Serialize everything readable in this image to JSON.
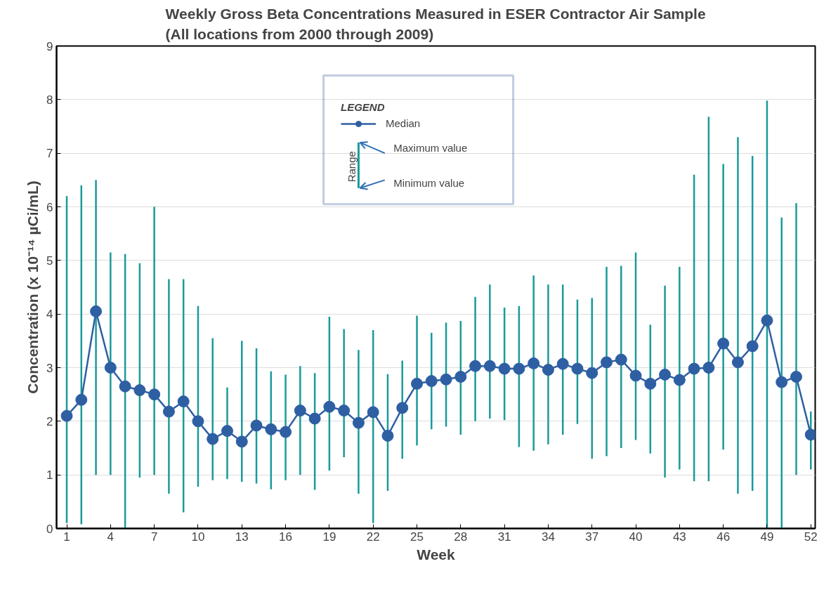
{
  "chart_data": {
    "type": "line",
    "title": "Weekly Gross Beta Concentrations Measured in ESER Contractor Air Sample\n(All locations from 2000 through 2009)",
    "xlabel": "Week",
    "ylabel": "Concentration (x 10⁻¹⁴ µCi/mL)",
    "legend_title": "LEGEND",
    "x": [
      1,
      2,
      3,
      4,
      5,
      6,
      7,
      8,
      9,
      10,
      11,
      12,
      13,
      14,
      15,
      16,
      17,
      18,
      19,
      20,
      21,
      22,
      23,
      24,
      25,
      26,
      27,
      28,
      29,
      30,
      31,
      32,
      33,
      34,
      35,
      36,
      37,
      38,
      39,
      40,
      41,
      42,
      43,
      44,
      45,
      46,
      47,
      48,
      49,
      50,
      51,
      52
    ],
    "series": [
      {
        "name": "Median",
        "color": "#2e5fa3",
        "values": [
          2.1,
          2.4,
          4.05,
          3.0,
          2.65,
          2.58,
          2.5,
          2.18,
          2.37,
          2.0,
          1.67,
          1.82,
          1.62,
          1.92,
          1.85,
          1.8,
          2.2,
          2.05,
          2.27,
          2.2,
          1.97,
          2.17,
          1.73,
          2.25,
          2.7,
          2.75,
          2.78,
          2.83,
          3.03,
          3.03,
          2.98,
          2.98,
          3.08,
          2.96,
          3.07,
          2.98,
          2.9,
          3.1,
          3.15,
          2.85,
          2.7,
          2.87,
          2.77,
          2.98,
          3.0,
          3.45,
          3.1,
          3.4,
          3.88,
          2.73,
          2.83,
          1.75
        ],
        "errors": [
          [
            0.1,
            6.2
          ],
          [
            0.08,
            6.4
          ],
          [
            1.0,
            6.5
          ],
          [
            1.0,
            5.15
          ],
          [
            0.0,
            5.12
          ],
          [
            0.95,
            4.95
          ],
          [
            1.0,
            6.0
          ],
          [
            0.65,
            4.65
          ],
          [
            0.3,
            4.65
          ],
          [
            0.78,
            4.15
          ],
          [
            0.9,
            3.55
          ],
          [
            0.92,
            2.63
          ],
          [
            0.87,
            3.5
          ],
          [
            0.84,
            3.36
          ],
          [
            0.73,
            2.93
          ],
          [
            0.9,
            2.87
          ],
          [
            1.0,
            3.03
          ],
          [
            0.72,
            2.9
          ],
          [
            1.08,
            3.95
          ],
          [
            1.33,
            3.72
          ],
          [
            0.65,
            3.33
          ],
          [
            0.1,
            3.7
          ],
          [
            0.7,
            2.88
          ],
          [
            1.3,
            3.13
          ],
          [
            1.55,
            3.97
          ],
          [
            1.85,
            3.65
          ],
          [
            1.9,
            3.84
          ],
          [
            1.75,
            3.87
          ],
          [
            2.0,
            4.32
          ],
          [
            2.05,
            4.55
          ],
          [
            2.02,
            4.12
          ],
          [
            1.52,
            4.15
          ],
          [
            1.45,
            4.72
          ],
          [
            1.57,
            4.55
          ],
          [
            1.75,
            4.55
          ],
          [
            1.95,
            4.27
          ],
          [
            1.3,
            4.3
          ],
          [
            1.35,
            4.88
          ],
          [
            1.5,
            4.9
          ],
          [
            1.65,
            5.15
          ],
          [
            1.4,
            3.8
          ],
          [
            0.95,
            4.53
          ],
          [
            1.1,
            4.88
          ],
          [
            0.88,
            6.6
          ],
          [
            0.88,
            7.68
          ],
          [
            1.47,
            6.8
          ],
          [
            0.65,
            7.3
          ],
          [
            0.7,
            6.95
          ],
          [
            0.0,
            7.98
          ],
          [
            0.0,
            5.8
          ],
          [
            1.0,
            6.07
          ],
          [
            1.1,
            2.18
          ]
        ]
      }
    ],
    "marker": "circle",
    "line_style": "solid",
    "xlim": [
      0.3,
      52.3
    ],
    "xticks": [
      1,
      4,
      7,
      10,
      13,
      16,
      19,
      22,
      25,
      28,
      31,
      34,
      37,
      40,
      43,
      46,
      49,
      52
    ],
    "ylim": [
      0,
      9
    ],
    "yticks": [
      0,
      1,
      2,
      3,
      4,
      5,
      6,
      7,
      8,
      9
    ],
    "grid": "y",
    "legend": "top",
    "annotations": [
      "Range",
      "Maximum value",
      "Minimum value"
    ]
  }
}
